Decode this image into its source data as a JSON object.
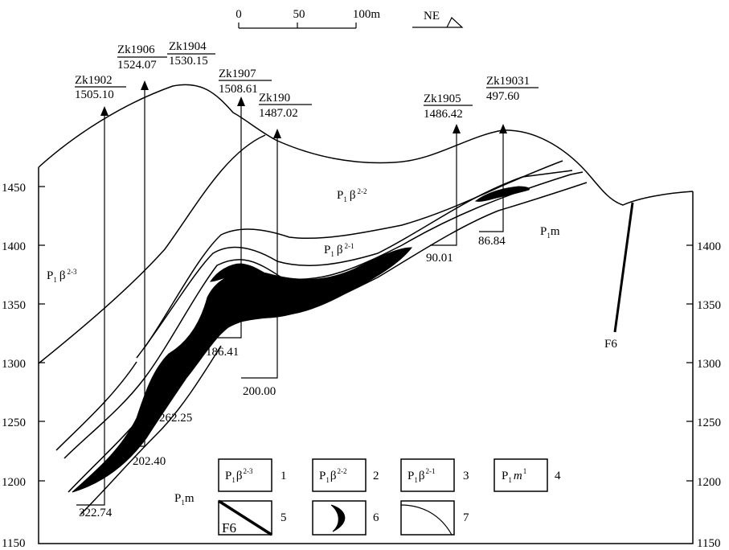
{
  "scale_bar": {
    "ticks": [
      "0",
      "50",
      "100m"
    ]
  },
  "north": {
    "label": "NE"
  },
  "axis": {
    "left_ticks": [
      "1450",
      "1400",
      "1350",
      "1300",
      "1250",
      "1200",
      "1150"
    ],
    "right_ticks": [
      "1400",
      "1350",
      "1300",
      "1250",
      "1200",
      "1150"
    ]
  },
  "boreholes": [
    {
      "name": "Zk1902",
      "elevation": "1505.10",
      "depth": "322.74"
    },
    {
      "name": "Zk1906",
      "elevation": "1524.07",
      "depth": "202.40"
    },
    {
      "name": "Zk1904",
      "elevation": "1530.15",
      "depth": "262.25"
    },
    {
      "name": "Zk1907",
      "elevation": "1508.61",
      "depth": "186.41"
    },
    {
      "name": "Zk190",
      "elevation": "1487.02",
      "depth": "200.00"
    },
    {
      "name": "Zk1905",
      "elevation": "1486.42",
      "depth": "90.01"
    },
    {
      "name": "Zk19031",
      "elevation": "497.60",
      "depth": "86.84"
    }
  ],
  "units": {
    "b23": {
      "main": "P",
      "sub": "1",
      "sym": "β",
      "sup": "2-3"
    },
    "b22": {
      "main": "P",
      "sub": "1",
      "sym": "β",
      "sup": "2-2"
    },
    "b21": {
      "main": "P",
      "sub": "1",
      "sym": "β",
      "sup": "2-1"
    },
    "m_right": {
      "main": "P",
      "sub": "1",
      "rest": "m"
    },
    "m_bottom": {
      "main": "P",
      "sub": "1",
      "rest": "m"
    }
  },
  "fault": {
    "label": "F6"
  },
  "legend": [
    {
      "num": "1",
      "main": "P",
      "sub": "1",
      "sym": "β",
      "sup": "2-3"
    },
    {
      "num": "2",
      "main": "P",
      "sub": "1",
      "sym": "β",
      "sup": "2-2"
    },
    {
      "num": "3",
      "main": "P",
      "sub": "1",
      "sym": "β",
      "sup": "2-1"
    },
    {
      "num": "4",
      "main": "P",
      "sub": "1",
      "sym": "m",
      "sup": "1"
    },
    {
      "num": "5",
      "text": "F6"
    },
    {
      "num": "6"
    },
    {
      "num": "7"
    }
  ]
}
